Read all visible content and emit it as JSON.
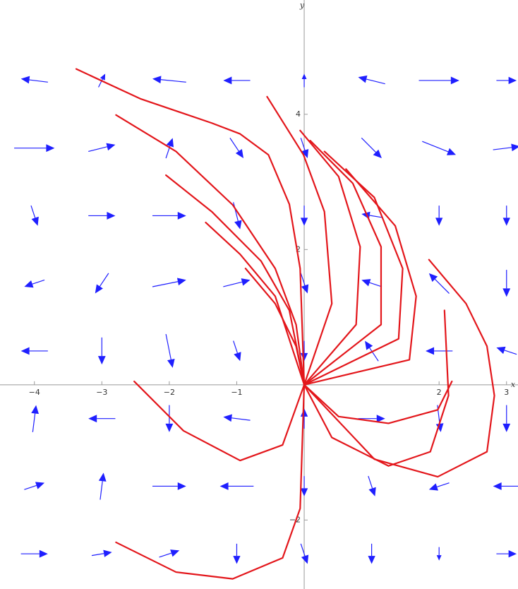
{
  "chart_data": {
    "type": "vector_field",
    "x_label": "x",
    "y_label": "y",
    "xlim": [
      -4.51,
      3.17
    ],
    "ylim": [
      -3.02,
      5.69
    ],
    "xticks": [
      {
        "value": -4,
        "label": "−4"
      },
      {
        "value": -3,
        "label": "−3"
      },
      {
        "value": -2,
        "label": "−2"
      },
      {
        "value": -1,
        "label": "−1"
      },
      2,
      3
    ],
    "yticks": [
      {
        "value": -2,
        "label": "−2"
      },
      2,
      4
    ],
    "arrow_color": "#1f1fff",
    "line_color": "#e3161b",
    "field": [
      {
        "x": -4,
        "y": 4.5,
        "u": -0.4,
        "v": 0.05
      },
      {
        "x": -3,
        "y": 4.5,
        "u": 0.1,
        "v": 0.2
      },
      {
        "x": -2,
        "y": 4.5,
        "u": -0.5,
        "v": 0.05
      },
      {
        "x": -1,
        "y": 4.5,
        "u": -0.4,
        "v": 0
      },
      {
        "x": 0,
        "y": 4.5,
        "u": 0,
        "v": 0.2
      },
      {
        "x": 1,
        "y": 4.5,
        "u": -0.4,
        "v": 0.1
      },
      {
        "x": 2,
        "y": 4.5,
        "u": 0.6,
        "v": 0
      },
      {
        "x": 3,
        "y": 4.5,
        "u": 0.3,
        "v": 0
      },
      {
        "x": -4,
        "y": 3.5,
        "u": 0.6,
        "v": 0
      },
      {
        "x": -3,
        "y": 3.5,
        "u": 0.4,
        "v": 0.1
      },
      {
        "x": -2,
        "y": 3.5,
        "u": 0.1,
        "v": 0.3
      },
      {
        "x": -1,
        "y": 3.5,
        "u": 0.2,
        "v": -0.3
      },
      {
        "x": 0,
        "y": 3.5,
        "u": 0.1,
        "v": -0.3
      },
      {
        "x": 1,
        "y": 3.5,
        "u": 0.3,
        "v": -0.3
      },
      {
        "x": 2,
        "y": 3.5,
        "u": 0.5,
        "v": -0.2
      },
      {
        "x": 3,
        "y": 3.5,
        "u": 0.4,
        "v": 0.05
      },
      {
        "x": -4,
        "y": 2.5,
        "u": 0.1,
        "v": -0.3
      },
      {
        "x": -3,
        "y": 2.5,
        "u": 0.4,
        "v": 0
      },
      {
        "x": -2,
        "y": 2.5,
        "u": 0.5,
        "v": 0
      },
      {
        "x": -1,
        "y": 2.5,
        "u": 0.1,
        "v": -0.4
      },
      {
        "x": 0,
        "y": 2.5,
        "u": 0,
        "v": -0.3
      },
      {
        "x": 1,
        "y": 2.5,
        "u": -0.3,
        "v": 0.05
      },
      {
        "x": 2,
        "y": 2.5,
        "u": 0,
        "v": -0.3
      },
      {
        "x": 3,
        "y": 2.5,
        "u": 0,
        "v": -0.3
      },
      {
        "x": -4,
        "y": 1.5,
        "u": -0.3,
        "v": -0.1
      },
      {
        "x": -3,
        "y": 1.5,
        "u": -0.2,
        "v": -0.3
      },
      {
        "x": -2,
        "y": 1.5,
        "u": 0.5,
        "v": 0.1
      },
      {
        "x": -1,
        "y": 1.5,
        "u": 0.4,
        "v": 0.1
      },
      {
        "x": 0,
        "y": 1.5,
        "u": 0.1,
        "v": -0.3
      },
      {
        "x": 1,
        "y": 1.5,
        "u": -0.3,
        "v": 0.1
      },
      {
        "x": 2,
        "y": 1.5,
        "u": -0.3,
        "v": 0.3
      },
      {
        "x": 3,
        "y": 1.5,
        "u": 0,
        "v": -0.4
      },
      {
        "x": -4,
        "y": 0.5,
        "u": -0.4,
        "v": 0
      },
      {
        "x": -3,
        "y": 0.5,
        "u": 0,
        "v": -0.4
      },
      {
        "x": -2,
        "y": 0.5,
        "u": 0.1,
        "v": -0.5
      },
      {
        "x": -1,
        "y": 0.5,
        "u": 0.1,
        "v": -0.3
      },
      {
        "x": 0,
        "y": 0.5,
        "u": 0,
        "v": -0.3
      },
      {
        "x": 1,
        "y": 0.5,
        "u": -0.2,
        "v": 0.3
      },
      {
        "x": 2,
        "y": 0.5,
        "u": -0.4,
        "v": 0
      },
      {
        "x": 3,
        "y": 0.5,
        "u": -0.3,
        "v": 0.1
      },
      {
        "x": -4,
        "y": -0.5,
        "u": 0.05,
        "v": 0.4
      },
      {
        "x": -3,
        "y": -0.5,
        "u": -0.4,
        "v": 0
      },
      {
        "x": -2,
        "y": -0.5,
        "u": 0,
        "v": -0.4
      },
      {
        "x": -1,
        "y": -0.5,
        "u": -0.4,
        "v": 0.05
      },
      {
        "x": 0,
        "y": -0.5,
        "u": 0,
        "v": 0.3
      },
      {
        "x": 1,
        "y": -0.5,
        "u": 0.4,
        "v": 0
      },
      {
        "x": 2,
        "y": -0.5,
        "u": 0.05,
        "v": -0.4
      },
      {
        "x": 3,
        "y": -0.5,
        "u": 0,
        "v": -0.4
      },
      {
        "x": -4,
        "y": -1.5,
        "u": 0.3,
        "v": 0.1
      },
      {
        "x": -3,
        "y": -1.5,
        "u": 0.05,
        "v": 0.4
      },
      {
        "x": -2,
        "y": -1.5,
        "u": 0.5,
        "v": 0
      },
      {
        "x": -1,
        "y": -1.5,
        "u": -0.5,
        "v": 0
      },
      {
        "x": 0,
        "y": -1.5,
        "u": 0,
        "v": -0.3
      },
      {
        "x": 1,
        "y": -1.5,
        "u": 0.1,
        "v": -0.3
      },
      {
        "x": 2,
        "y": -1.5,
        "u": -0.3,
        "v": -0.1
      },
      {
        "x": 3,
        "y": -1.5,
        "u": -0.4,
        "v": 0
      },
      {
        "x": -4,
        "y": -2.5,
        "u": 0.4,
        "v": 0
      },
      {
        "x": -3,
        "y": -2.5,
        "u": 0.3,
        "v": 0.05
      },
      {
        "x": -2,
        "y": -2.5,
        "u": 0.3,
        "v": 0.1
      },
      {
        "x": -1,
        "y": -2.5,
        "u": 0,
        "v": -0.3
      },
      {
        "x": 0,
        "y": -2.5,
        "u": 0.1,
        "v": -0.3
      },
      {
        "x": 1,
        "y": -2.5,
        "u": 0,
        "v": -0.3
      },
      {
        "x": 2,
        "y": -2.5,
        "u": 0,
        "v": -0.2
      },
      {
        "x": 3,
        "y": -2.5,
        "u": 0.3,
        "v": 0
      }
    ],
    "series": [
      {
        "x": [
          -3.38,
          -2.43,
          -1.37,
          -0.95,
          -0.53,
          -0.22,
          -0.06,
          0
        ],
        "values": [
          4.67,
          4.23,
          3.87,
          3.71,
          3.4,
          2.67,
          1.72,
          0
        ]
      },
      {
        "x": [
          -2.79,
          -1.9,
          -1.06,
          -0.43,
          -0.12,
          0
        ],
        "values": [
          3.99,
          3.45,
          2.66,
          1.72,
          0.89,
          0
        ]
      },
      {
        "x": [
          -2.05,
          -1.37,
          -0.64,
          -0.22,
          0
        ],
        "values": [
          3.1,
          2.56,
          1.83,
          1.1,
          0
        ]
      },
      {
        "x": [
          -1.46,
          -0.95,
          -0.43,
          0
        ],
        "values": [
          2.4,
          1.93,
          1.31,
          0
        ]
      },
      {
        "x": [
          -0.87,
          -0.43,
          -0.12,
          0
        ],
        "values": [
          1.72,
          1.2,
          0.57,
          0
        ]
      },
      {
        "x": [
          -2.52,
          -1.79,
          -0.95,
          -0.32,
          0
        ],
        "values": [
          0.05,
          -0.68,
          -1.12,
          -0.89,
          0
        ]
      },
      {
        "x": [
          -2.79,
          -1.9,
          -1.06,
          -0.32,
          -0.06,
          0
        ],
        "values": [
          -2.33,
          -2.77,
          -2.87,
          -2.56,
          -1.83,
          0
        ]
      },
      {
        "x": [
          -0.55,
          -0.01,
          0.3,
          0.41,
          0
        ],
        "values": [
          4.26,
          3.4,
          2.56,
          1.2,
          0
        ]
      },
      {
        "x": [
          -0.06,
          0.51,
          0.83,
          0.77,
          0
        ],
        "values": [
          3.76,
          3.08,
          2.04,
          0.89,
          0
        ]
      },
      {
        "x": [
          0.09,
          0.72,
          1.14,
          1.14,
          0
        ],
        "values": [
          3.61,
          2.98,
          2.04,
          0.89,
          0
        ]
      },
      {
        "x": [
          0.3,
          1.04,
          1.46,
          1.4,
          0
        ],
        "values": [
          3.45,
          2.77,
          1.72,
          0.68,
          0
        ]
      },
      {
        "x": [
          0.62,
          1.35,
          1.66,
          1.56,
          0
        ],
        "values": [
          3.19,
          2.35,
          1.31,
          0.37,
          0
        ]
      },
      {
        "x": [
          1.85,
          2.4,
          2.71,
          2.82,
          2.71,
          1.98,
          1.04,
          0
        ],
        "values": [
          1.85,
          1.2,
          0.57,
          -0.16,
          -0.99,
          -1.36,
          -1.1,
          0
        ]
      },
      {
        "x": [
          0,
          0.51,
          1.25,
          1.98,
          2.19
        ],
        "values": [
          0,
          -0.47,
          -0.57,
          -0.37,
          0.05
        ]
      },
      {
        "x": [
          0,
          0.41,
          1.25,
          1.87,
          2.14,
          2.08
        ],
        "values": [
          0,
          -0.78,
          -1.2,
          -0.99,
          -0.16,
          1.1
        ]
      }
    ]
  }
}
